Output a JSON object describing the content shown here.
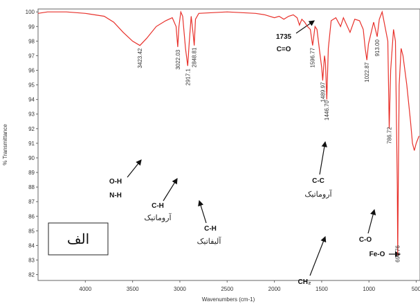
{
  "chart_data": {
    "type": "line",
    "x_label": "Wavenumbers (cm-1)",
    "y_label": "% Transmittance",
    "xlim": [
      4500,
      460
    ],
    "ylim": [
      81.6,
      100.2
    ],
    "xticks": [
      4000,
      3500,
      3000,
      2500,
      2000,
      1500,
      1000,
      500
    ],
    "yticks": [
      82,
      83,
      84,
      85,
      86,
      87,
      88,
      89,
      90,
      91,
      92,
      93,
      94,
      95,
      96,
      97,
      98,
      99,
      100
    ],
    "series": [
      {
        "color": "#e8302a",
        "x": [
          4500,
          4400,
          4200,
          4000,
          3800,
          3700,
          3600,
          3500,
          3423,
          3350,
          3250,
          3150,
          3080,
          3040,
          3022,
          3010,
          2990,
          2970,
          2940,
          2917,
          2900,
          2880,
          2860,
          2848,
          2835,
          2800,
          2500,
          2200,
          2100,
          2000,
          1950,
          1900,
          1850,
          1800,
          1760,
          1735,
          1710,
          1680,
          1650,
          1620,
          1596,
          1570,
          1550,
          1520,
          1500,
          1489,
          1470,
          1460,
          1446,
          1430,
          1400,
          1350,
          1300,
          1270,
          1200,
          1150,
          1100,
          1060,
          1040,
          1022,
          1005,
          980,
          950,
          913,
          890,
          860,
          830,
          800,
          786,
          770,
          740,
          720,
          700,
          696,
          690,
          680,
          660,
          640,
          600,
          560,
          540,
          520,
          500,
          470
        ],
        "values": [
          99.9,
          100,
          100,
          99.9,
          99.7,
          99.3,
          98.6,
          98.0,
          97.7,
          98.2,
          99.0,
          99.4,
          99.6,
          99.0,
          97.6,
          99.0,
          100,
          99.7,
          97.5,
          96.3,
          98,
          99.7,
          98.5,
          97.7,
          99.5,
          99.9,
          100,
          99.9,
          99.8,
          99.6,
          99.7,
          99.5,
          99.7,
          99.8,
          99.6,
          99.1,
          99.5,
          99.3,
          99.0,
          98.8,
          97.7,
          99.0,
          98.8,
          97.2,
          96.2,
          95.3,
          97,
          96.5,
          94.0,
          97.5,
          99.4,
          99.6,
          99.0,
          99.6,
          98.6,
          99.5,
          99.4,
          98.8,
          97.5,
          96.7,
          97.8,
          98.5,
          99.3,
          98.3,
          99.5,
          100,
          99,
          98,
          92,
          96,
          98.8,
          98,
          88,
          83.3,
          88,
          95,
          97.5,
          97,
          95,
          92.5,
          91,
          90.5,
          91,
          91.5
        ]
      }
    ],
    "peaks": [
      {
        "value": 3423.42,
        "label": "3423.42"
      },
      {
        "value": 3022.03,
        "label": "3022.03"
      },
      {
        "value": 2917.1,
        "label": "2917.1"
      },
      {
        "value": 2848.81,
        "label": "2848.81"
      },
      {
        "value": 1596.77,
        "label": "1596.77"
      },
      {
        "value": 1489.97,
        "label": "1489.97"
      },
      {
        "value": 1446.7,
        "label": "1446.70"
      },
      {
        "value": 1022.87,
        "label": "1022.87"
      },
      {
        "value": 913.0,
        "label": "913.00"
      },
      {
        "value": 786.72,
        "label": "786.72"
      },
      {
        "value": 696.76,
        "label": "696.76"
      }
    ],
    "annotations": [
      "O-H",
      "N-H",
      "C-H",
      "آروماتیک",
      "C-H",
      "آلیفاتیک",
      "1735",
      "C=O",
      "C-C",
      "آروماتیک",
      "CH₂",
      "C-O",
      "Fe-O",
      "الف"
    ]
  }
}
